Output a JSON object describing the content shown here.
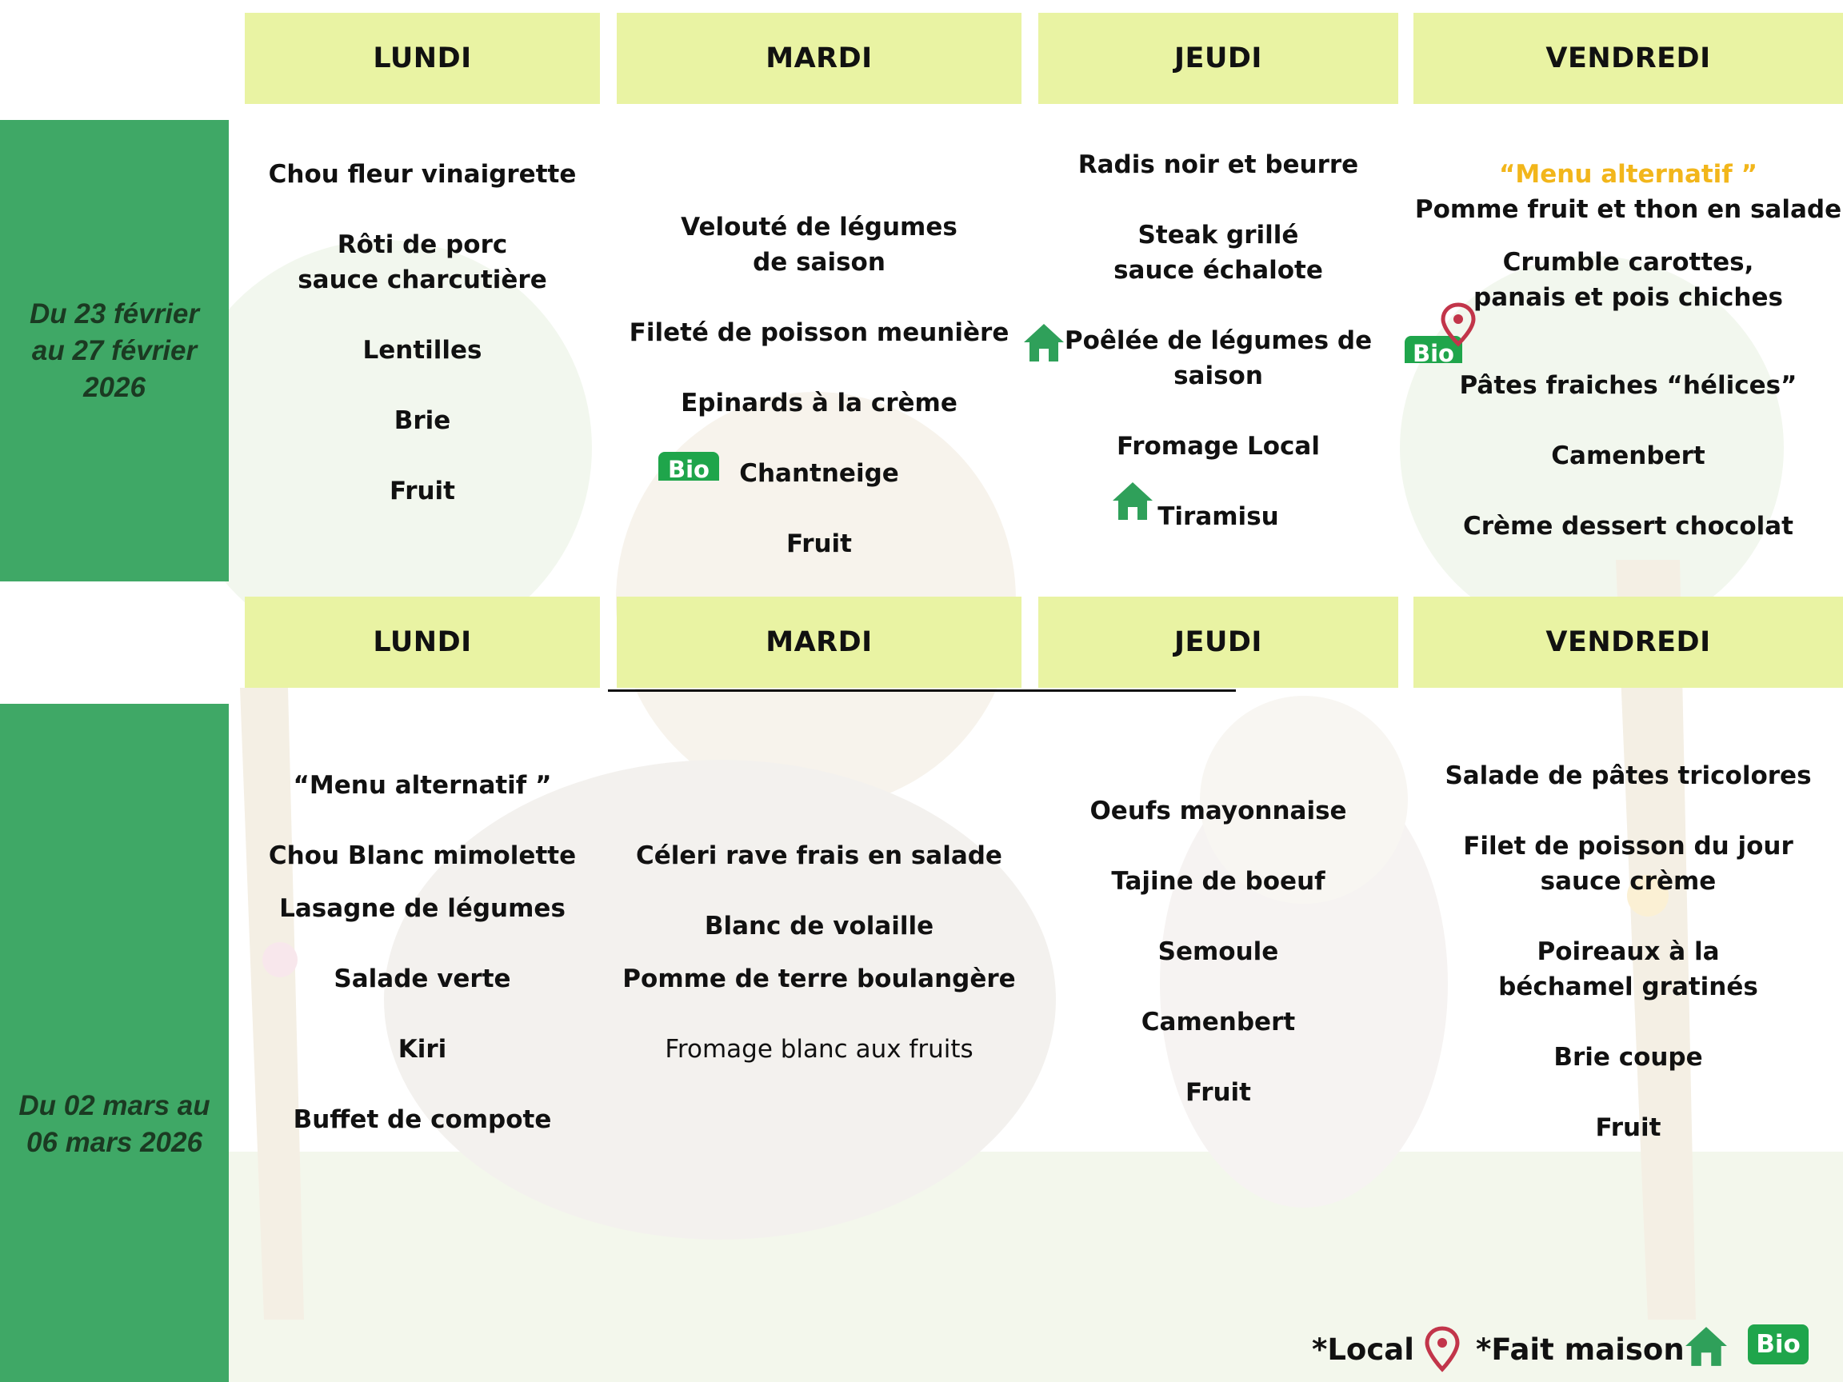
{
  "colors": {
    "band": "#3fa866",
    "header": "#e9f3a3",
    "alt_menu": "#f2b61b",
    "bio": "#1fa54b"
  },
  "week1": {
    "label": "Du 23 février au 27 février 2026",
    "days": {
      "mon": "LUNDI",
      "tue": "MARDI",
      "thu": "JEUDI",
      "fri": "VENDREDI"
    },
    "mon": [
      "Chou fleur vinaigrette",
      "Rôti de porc sauce charcutière",
      "Lentilles",
      "Brie",
      "Fruit"
    ],
    "tue": [
      "Velouté de légumes de saison",
      "Fileté de poisson meunière",
      "Epinards à la crème",
      "Chantneige",
      "Fruit"
    ],
    "thu": [
      "Radis noir et beurre",
      "Steak grillé sauce échalote",
      "Poêlée de légumes de saison",
      "Fromage Local",
      "Tiramisu"
    ],
    "fri_alt": "“Menu alternatif ”",
    "fri": [
      "Pomme fruit et thon en salade",
      "Crumble carottes, panais et pois chiches",
      "Pâtes fraiches “hélices”",
      "Camenbert",
      "Crème dessert chocolat"
    ]
  },
  "week2": {
    "label": "Du 02 mars au 06 mars 2026",
    "days": {
      "mon": "LUNDI",
      "tue": "MARDI",
      "thu": "JEUDI",
      "fri": "VENDREDI"
    },
    "mon_alt": "“Menu alternatif ”",
    "mon": [
      "Chou Blanc mimolette",
      "Lasagne de légumes",
      "Salade verte",
      "Kiri",
      "Buffet de compote"
    ],
    "tue": [
      "Céleri rave frais en salade",
      "Blanc de volaille",
      "Pomme de terre boulangère",
      "Fromage blanc aux fruits"
    ],
    "thu": [
      "Oeufs mayonnaise",
      "Tajine de boeuf",
      "Semoule",
      "Camenbert",
      "Fruit"
    ],
    "fri": [
      "Salade de pâtes tricolores",
      "Filet de poisson du jour sauce crème",
      "Poireaux à la béchamel gratinés",
      "Brie coupe",
      "Fruit"
    ]
  },
  "badges": {
    "bio": "Bio"
  },
  "icons": {
    "home": "home-icon",
    "pin": "location-pin-icon"
  },
  "legend": {
    "local": "*Local",
    "fait_maison": "*Fait maison",
    "bio": "Bio"
  }
}
